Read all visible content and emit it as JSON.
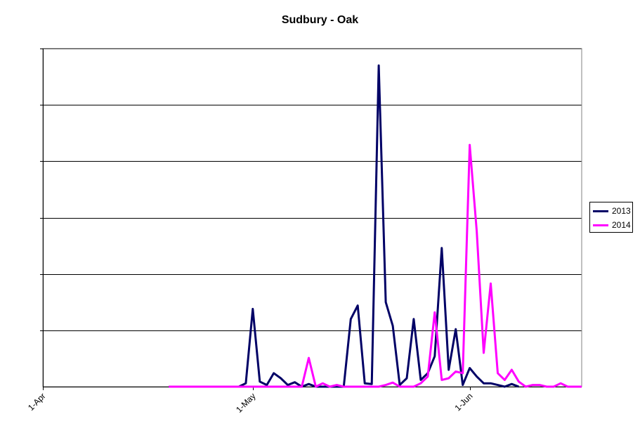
{
  "chart_data": {
    "type": "line",
    "title": "Sudbury - Oak",
    "xlabel": "",
    "ylabel": "",
    "x_range": [
      "2013-04-01",
      "2013-06-17"
    ],
    "y_range": [
      0,
      1
    ],
    "y_gridlines": [
      0.1667,
      0.3333,
      0.5,
      0.6667,
      0.8333,
      1.0
    ],
    "grid": true,
    "legend_position": "right",
    "x_ticks": [
      {
        "label": "1-Apr",
        "date": "2013-04-01"
      },
      {
        "label": "1-May",
        "date": "2013-05-01"
      },
      {
        "label": "1-Jun",
        "date": "2013-06-01"
      }
    ],
    "series": [
      {
        "name": "2013",
        "color": "#000066",
        "points": [
          [
            "2013-04-19",
            0
          ],
          [
            "2013-04-20",
            0
          ],
          [
            "2013-04-21",
            0
          ],
          [
            "2013-04-22",
            0
          ],
          [
            "2013-04-23",
            0
          ],
          [
            "2013-04-24",
            0
          ],
          [
            "2013-04-25",
            0
          ],
          [
            "2013-04-26",
            0
          ],
          [
            "2013-04-27",
            0
          ],
          [
            "2013-04-28",
            0
          ],
          [
            "2013-04-29",
            0
          ],
          [
            "2013-04-30",
            0.01
          ],
          [
            "2013-05-01",
            0.23
          ],
          [
            "2013-05-02",
            0.015
          ],
          [
            "2013-05-03",
            0.005
          ],
          [
            "2013-05-04",
            0.04
          ],
          [
            "2013-05-05",
            0.025
          ],
          [
            "2013-05-06",
            0.005
          ],
          [
            "2013-05-07",
            0.013
          ],
          [
            "2013-05-08",
            0
          ],
          [
            "2013-05-09",
            0.008
          ],
          [
            "2013-05-10",
            0
          ],
          [
            "2013-05-11",
            0
          ],
          [
            "2013-05-12",
            0
          ],
          [
            "2013-05-13",
            0
          ],
          [
            "2013-05-14",
            0
          ],
          [
            "2013-05-15",
            0.2
          ],
          [
            "2013-05-16",
            0.24
          ],
          [
            "2013-05-17",
            0.01
          ],
          [
            "2013-05-18",
            0.008
          ],
          [
            "2013-05-19",
            0.95
          ],
          [
            "2013-05-20",
            0.25
          ],
          [
            "2013-05-21",
            0.18
          ],
          [
            "2013-05-22",
            0.005
          ],
          [
            "2013-05-23",
            0.025
          ],
          [
            "2013-05-24",
            0.2
          ],
          [
            "2013-05-25",
            0.02
          ],
          [
            "2013-05-26",
            0.04
          ],
          [
            "2013-05-27",
            0.09
          ],
          [
            "2013-05-28",
            0.41
          ],
          [
            "2013-05-29",
            0.05
          ],
          [
            "2013-05-30",
            0.17
          ],
          [
            "2013-05-31",
            0.005
          ],
          [
            "2013-06-01",
            0.055
          ],
          [
            "2013-06-02",
            0.03
          ],
          [
            "2013-06-03",
            0.01
          ],
          [
            "2013-06-04",
            0.01
          ],
          [
            "2013-06-05",
            0.005
          ],
          [
            "2013-06-06",
            0
          ],
          [
            "2013-06-07",
            0.008
          ],
          [
            "2013-06-08",
            0
          ]
        ]
      },
      {
        "name": "2014",
        "color": "#ff00ff",
        "points": [
          [
            "2013-04-19",
            0
          ],
          [
            "2013-04-20",
            0
          ],
          [
            "2013-04-21",
            0
          ],
          [
            "2013-04-22",
            0
          ],
          [
            "2013-04-23",
            0
          ],
          [
            "2013-04-24",
            0
          ],
          [
            "2013-04-25",
            0
          ],
          [
            "2013-04-26",
            0
          ],
          [
            "2013-04-27",
            0
          ],
          [
            "2013-04-28",
            0
          ],
          [
            "2013-04-29",
            0
          ],
          [
            "2013-04-30",
            0
          ],
          [
            "2013-05-01",
            0
          ],
          [
            "2013-05-02",
            0
          ],
          [
            "2013-05-03",
            0
          ],
          [
            "2013-05-04",
            0
          ],
          [
            "2013-05-05",
            0
          ],
          [
            "2013-05-06",
            0
          ],
          [
            "2013-05-07",
            0
          ],
          [
            "2013-05-08",
            0
          ],
          [
            "2013-05-09",
            0.085
          ],
          [
            "2013-05-10",
            0
          ],
          [
            "2013-05-11",
            0.01
          ],
          [
            "2013-05-12",
            0
          ],
          [
            "2013-05-13",
            0.005
          ],
          [
            "2013-05-14",
            0
          ],
          [
            "2013-05-15",
            0
          ],
          [
            "2013-05-16",
            0
          ],
          [
            "2013-05-17",
            0
          ],
          [
            "2013-05-18",
            0
          ],
          [
            "2013-05-19",
            0
          ],
          [
            "2013-05-20",
            0.005
          ],
          [
            "2013-05-21",
            0.012
          ],
          [
            "2013-05-22",
            0
          ],
          [
            "2013-05-23",
            0
          ],
          [
            "2013-05-24",
            0
          ],
          [
            "2013-05-25",
            0.01
          ],
          [
            "2013-05-26",
            0.03
          ],
          [
            "2013-05-27",
            0.22
          ],
          [
            "2013-05-28",
            0.02
          ],
          [
            "2013-05-29",
            0.025
          ],
          [
            "2013-05-30",
            0.045
          ],
          [
            "2013-05-31",
            0.04
          ],
          [
            "2013-06-01",
            0.715
          ],
          [
            "2013-06-02",
            0.46
          ],
          [
            "2013-06-03",
            0.1
          ],
          [
            "2013-06-04",
            0.305
          ],
          [
            "2013-06-05",
            0.04
          ],
          [
            "2013-06-06",
            0.02
          ],
          [
            "2013-06-07",
            0.05
          ],
          [
            "2013-06-08",
            0.015
          ],
          [
            "2013-06-09",
            0
          ],
          [
            "2013-06-10",
            0.005
          ],
          [
            "2013-06-11",
            0.005
          ],
          [
            "2013-06-12",
            0
          ],
          [
            "2013-06-13",
            0
          ],
          [
            "2013-06-14",
            0.01
          ],
          [
            "2013-06-15",
            0
          ],
          [
            "2013-06-16",
            0
          ],
          [
            "2013-06-17",
            0
          ]
        ]
      }
    ]
  }
}
